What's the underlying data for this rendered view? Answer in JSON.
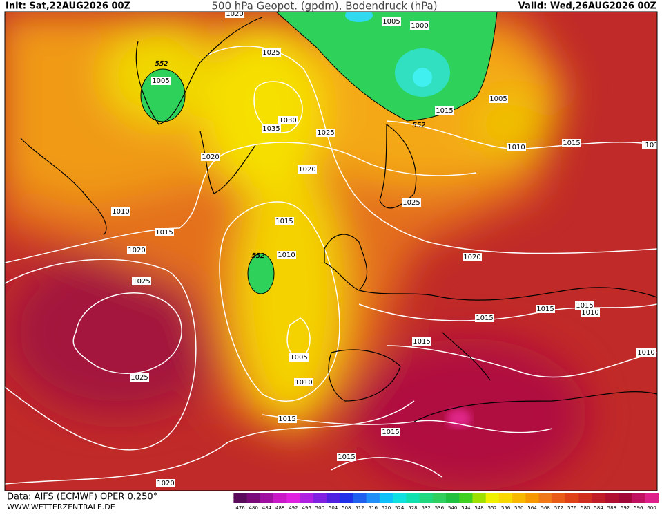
{
  "header": {
    "init": "Init: Sat,22AUG2026 00Z",
    "title": "500 hPa Geopot. (gpdm), Bodendruck (hPa)",
    "valid": "Valid: Wed,26AUG2026 00Z"
  },
  "footer": {
    "data_source": "Data: AIFS (ECMWF) OPER 0.250°",
    "website": "WWW.WETTERZENTRALE.DE"
  },
  "map": {
    "isobar_labels": [
      1020,
      1005,
      1000,
      1025,
      552,
      1005,
      1005,
      1015,
      552,
      1030,
      1035,
      1025,
      1010,
      1015,
      101,
      1020,
      1020,
      1025,
      1010,
      1015,
      1015,
      1020,
      552,
      1010,
      1020,
      1025,
      1015,
      1015,
      1010,
      1015,
      1015,
      1005,
      1010,
      1025,
      1010,
      1015,
      1015,
      1015,
      1020
    ]
  },
  "colorbar": {
    "labels": [
      476,
      480,
      484,
      488,
      492,
      496,
      500,
      504,
      508,
      512,
      516,
      520,
      524,
      528,
      532,
      536,
      540,
      544,
      548,
      552,
      556,
      560,
      564,
      568,
      572,
      576,
      580,
      584,
      588,
      592,
      596,
      600
    ],
    "colors": [
      "#5a0a5a",
      "#7a0a7a",
      "#a010a0",
      "#c818c8",
      "#e020e0",
      "#b020e0",
      "#8020e0",
      "#5020e0",
      "#2030e8",
      "#2060f0",
      "#2090f8",
      "#10c0f8",
      "#10e0e0",
      "#10e0b0",
      "#20d880",
      "#30d060",
      "#20c040",
      "#40d020",
      "#a0e000",
      "#f0f000",
      "#f8d800",
      "#f8b800",
      "#f89800",
      "#f07818",
      "#e85c18",
      "#e04018",
      "#d02c20",
      "#c01c28",
      "#b01030",
      "#a00838",
      "#c01060",
      "#e0208a"
    ]
  }
}
